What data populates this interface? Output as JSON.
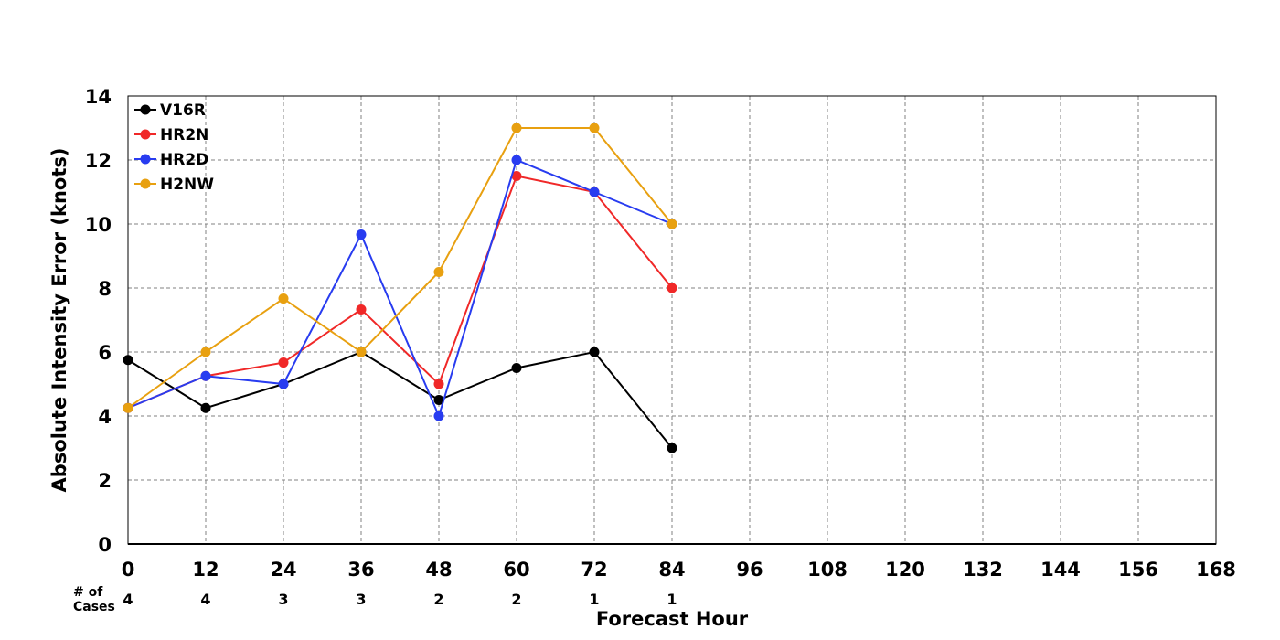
{
  "chart_data": {
    "type": "line",
    "xlabel": "Forecast Hour",
    "ylabel": "Absolute Intensity Error (knots)",
    "xlim": [
      0,
      168
    ],
    "ylim": [
      0,
      14
    ],
    "xticks": [
      0,
      12,
      24,
      36,
      48,
      60,
      72,
      84,
      96,
      108,
      120,
      132,
      144,
      156,
      168
    ],
    "yticks": [
      0,
      2,
      4,
      6,
      8,
      10,
      12,
      14
    ],
    "grid": true,
    "legend": "top-left",
    "series": [
      {
        "name": "V16R",
        "color": "#000000",
        "x": [
          0,
          12,
          24,
          36,
          48,
          60,
          72,
          84
        ],
        "y": [
          5.75,
          4.25,
          5.0,
          6.0,
          4.5,
          5.5,
          6.0,
          3.0
        ]
      },
      {
        "name": "HR2N",
        "color": "#f02828",
        "x": [
          0,
          12,
          24,
          36,
          48,
          60,
          72,
          84
        ],
        "y": [
          4.25,
          5.25,
          5.67,
          7.33,
          5.0,
          11.5,
          11.0,
          8.0
        ]
      },
      {
        "name": "HR2D",
        "color": "#283cf0",
        "x": [
          0,
          12,
          24,
          36,
          48,
          60,
          72,
          84
        ],
        "y": [
          4.25,
          5.25,
          5.0,
          9.67,
          4.0,
          12.0,
          11.0,
          10.0
        ]
      },
      {
        "name": "H2NW",
        "color": "#e8a010",
        "x": [
          0,
          12,
          24,
          36,
          48,
          60,
          72,
          84
        ],
        "y": [
          4.25,
          6.0,
          7.67,
          6.0,
          8.5,
          13.0,
          13.0,
          10.0
        ]
      }
    ],
    "cases": {
      "label_line1": "# of",
      "label_line2": "Cases",
      "x": [
        0,
        12,
        24,
        36,
        48,
        60,
        72,
        84
      ],
      "counts": [
        "4",
        "4",
        "3",
        "3",
        "2",
        "2",
        "1",
        "1"
      ]
    }
  }
}
